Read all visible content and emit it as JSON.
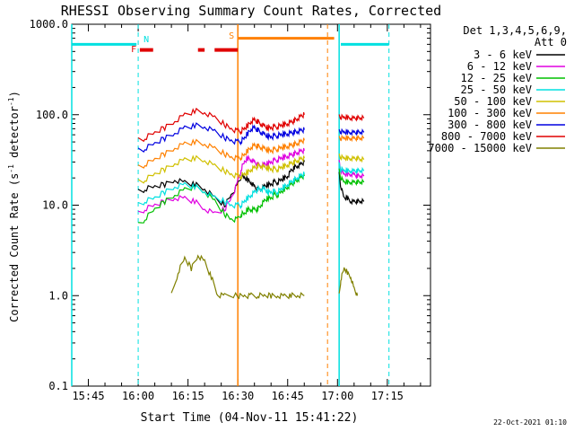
{
  "chart_data": {
    "type": "line",
    "title": "RHESSI Observing Summary Count Rates, Corrected",
    "xlabel": "Start Time (04-Nov-11 15:41:22)",
    "ylabel": "Corrected Count Rate (s⁻¹ detector⁻¹)",
    "ylabel_parts": [
      "Corrected Count Rate (s",
      "-1",
      " detector",
      "-1",
      ")"
    ],
    "y_scale": "log",
    "ylim": [
      0.1,
      1000.0
    ],
    "y_ticks": [
      "0.1",
      "1.0",
      "10.0",
      "100.0",
      "1000.0"
    ],
    "x_ticks": [
      "15:45",
      "16:00",
      "16:15",
      "16:30",
      "16:45",
      "17:00",
      "17:15"
    ],
    "x_tick_minutes": [
      -3,
      12,
      27,
      42,
      57,
      72,
      87
    ],
    "xlim_minutes_from_15_48": [
      -8,
      100
    ],
    "legend_title": [
      "Det 1,3,4,5,6,9,",
      "Att 0"
    ],
    "legend_position": "right",
    "footer": "22-Oct-2021 01:10",
    "series": [
      {
        "name": "3 - 6 keV",
        "color": "#000000",
        "x": [
          12,
          14,
          17,
          20,
          23,
          26,
          29,
          32,
          35,
          38,
          40,
          42,
          43,
          44,
          45,
          46,
          47,
          48,
          49,
          50,
          51,
          52,
          53,
          54,
          55,
          56,
          57,
          58,
          59,
          60,
          61,
          62
        ],
        "y": [
          14,
          15,
          16,
          17,
          19,
          18,
          17,
          15,
          12,
          10,
          13,
          17,
          21,
          20,
          19,
          18,
          16,
          15,
          15,
          16,
          17,
          17,
          18,
          18,
          19,
          20,
          21,
          24,
          26,
          27,
          28,
          30
        ],
        "x2": [
          72.5,
          73,
          74,
          75,
          76,
          77,
          78,
          79,
          80
        ],
        "y2": [
          22,
          16,
          12,
          12,
          11,
          11,
          11,
          11,
          11
        ]
      },
      {
        "name": "6 - 12 keV",
        "color": "#e000e0",
        "x": [
          12,
          14,
          17,
          20,
          23,
          26,
          29,
          32,
          35,
          38,
          40,
          42,
          43,
          44,
          45,
          46,
          47,
          48,
          49,
          50,
          51,
          52,
          53,
          54,
          55,
          56,
          57,
          58,
          59,
          60,
          61,
          62
        ],
        "y": [
          8,
          9,
          10,
          11,
          12,
          12,
          11,
          9,
          8,
          9,
          12,
          18,
          25,
          30,
          33,
          32,
          30,
          28,
          27,
          28,
          29,
          30,
          31,
          32,
          33,
          34,
          35,
          36,
          37,
          38,
          39,
          40
        ],
        "x2": [
          72.5,
          73,
          74,
          75,
          76,
          77,
          78,
          79,
          80
        ],
        "y2": [
          30,
          24,
          22,
          22,
          22,
          22,
          21,
          21,
          21
        ]
      },
      {
        "name": "12 - 25 keV",
        "color": "#00c000",
        "x": [
          12,
          14,
          17,
          20,
          23,
          26,
          29,
          32,
          35,
          38,
          40,
          42,
          43,
          44,
          45,
          46,
          47,
          48,
          49,
          50,
          51,
          52,
          53,
          54,
          55,
          56,
          57,
          58,
          59,
          60,
          61,
          62
        ],
        "y": [
          6,
          7,
          9,
          11,
          13,
          15,
          16,
          14,
          11,
          8,
          7,
          7,
          8,
          8,
          9,
          9,
          9,
          9,
          10,
          11,
          12,
          12,
          13,
          13,
          14,
          15,
          16,
          17,
          18,
          19,
          20,
          21
        ],
        "x2": [
          72.5,
          73,
          74,
          75,
          76,
          77,
          78,
          79,
          80
        ],
        "y2": [
          24,
          20,
          18,
          18,
          18,
          18,
          18,
          18,
          18
        ]
      },
      {
        "name": "25 - 50 keV",
        "color": "#00e0e0",
        "x": [
          12,
          14,
          17,
          20,
          23,
          26,
          29,
          32,
          35,
          38,
          40,
          42,
          43,
          44,
          45,
          46,
          47,
          48,
          49,
          50,
          51,
          52,
          53,
          54,
          55,
          56,
          57,
          58,
          59,
          60,
          61,
          62
        ],
        "y": [
          10,
          11,
          12,
          14,
          16,
          17,
          16,
          14,
          12,
          11,
          10,
          10,
          10,
          11,
          12,
          13,
          14,
          15,
          15,
          15,
          14,
          14,
          14,
          14,
          15,
          16,
          17,
          18,
          19,
          20,
          21,
          22
        ],
        "x2": [
          72.5,
          73,
          74,
          75,
          76,
          77,
          78,
          79,
          80
        ],
        "y2": [
          28,
          25,
          24,
          24,
          24,
          24,
          24,
          24,
          24
        ]
      },
      {
        "name": "50 - 100 keV",
        "color": "#d0c000",
        "x": [
          12,
          14,
          17,
          20,
          23,
          26,
          29,
          32,
          35,
          38,
          40,
          42,
          43,
          44,
          45,
          46,
          47,
          48,
          49,
          50,
          51,
          52,
          53,
          54,
          55,
          56,
          57,
          58,
          59,
          60,
          61,
          62
        ],
        "y": [
          18,
          19,
          22,
          25,
          29,
          32,
          33,
          31,
          27,
          24,
          22,
          21,
          21,
          22,
          23,
          25,
          26,
          27,
          27,
          26,
          26,
          25,
          25,
          25,
          26,
          27,
          28,
          29,
          30,
          31,
          32,
          33
        ],
        "x2": [
          72.5,
          73,
          74,
          75,
          76,
          77,
          78,
          79,
          80
        ],
        "y2": [
          35,
          34,
          33,
          33,
          33,
          33,
          33,
          32,
          32
        ]
      },
      {
        "name": "100 - 300 keV",
        "color": "#ff8000",
        "x": [
          12,
          14,
          17,
          20,
          23,
          26,
          29,
          32,
          35,
          38,
          40,
          42,
          43,
          44,
          45,
          46,
          47,
          48,
          49,
          50,
          51,
          52,
          53,
          54,
          55,
          56,
          57,
          58,
          59,
          60,
          61,
          62
        ],
        "y": [
          26,
          28,
          32,
          37,
          43,
          48,
          50,
          47,
          42,
          37,
          34,
          33,
          34,
          36,
          40,
          44,
          46,
          45,
          43,
          42,
          41,
          40,
          41,
          42,
          43,
          44,
          45,
          46,
          47,
          48,
          50,
          52
        ],
        "x2": [
          72.5,
          73,
          74,
          75,
          76,
          77,
          78,
          79,
          80
        ],
        "y2": [
          55,
          55,
          55,
          55,
          55,
          55,
          55,
          55,
          55
        ]
      },
      {
        "name": "300 - 800 keV",
        "color": "#0000e0",
        "x": [
          12,
          14,
          17,
          20,
          23,
          26,
          29,
          32,
          35,
          38,
          40,
          42,
          43,
          44,
          45,
          46,
          47,
          48,
          49,
          50,
          51,
          52,
          53,
          54,
          55,
          56,
          57,
          58,
          59,
          60,
          61,
          62
        ],
        "y": [
          40,
          42,
          48,
          55,
          63,
          72,
          76,
          73,
          65,
          56,
          52,
          50,
          51,
          55,
          62,
          70,
          72,
          68,
          63,
          60,
          58,
          57,
          58,
          59,
          60,
          61,
          62,
          63,
          64,
          65,
          66,
          68
        ],
        "x2": [
          72.5,
          73,
          74,
          75,
          76,
          77,
          78,
          79,
          80
        ],
        "y2": [
          65,
          65,
          64,
          64,
          64,
          64,
          64,
          64,
          64
        ]
      },
      {
        "name": "800 - 7000 keV",
        "color": "#e00000",
        "x": [
          12,
          14,
          17,
          20,
          23,
          26,
          29,
          32,
          35,
          38,
          40,
          42,
          43,
          44,
          45,
          46,
          47,
          48,
          49,
          50,
          51,
          52,
          53,
          54,
          55,
          56,
          57,
          58,
          59,
          60,
          61,
          62
        ],
        "y": [
          52,
          55,
          63,
          72,
          85,
          100,
          110,
          105,
          92,
          78,
          70,
          66,
          66,
          70,
          76,
          85,
          88,
          84,
          78,
          74,
          72,
          72,
          73,
          74,
          76,
          78,
          80,
          83,
          86,
          90,
          95,
          100
        ],
        "x2": [
          72.5,
          73,
          74,
          75,
          76,
          77,
          78,
          79,
          80
        ],
        "y2": [
          95,
          94,
          93,
          93,
          92,
          92,
          92,
          92,
          92
        ]
      },
      {
        "name": "7000 - 15000 keV",
        "color": "#808000",
        "x": [
          22,
          24,
          26,
          28,
          30,
          32,
          34,
          36,
          38,
          42,
          44,
          46,
          48,
          50,
          52,
          54,
          56,
          58,
          60,
          62
        ],
        "y": [
          1,
          1.8,
          2.6,
          2,
          2.8,
          2.4,
          1.6,
          1,
          1,
          1,
          1,
          1,
          1,
          1,
          1,
          1,
          1,
          1,
          1,
          1
        ],
        "x2": [
          72.5,
          73,
          74,
          75,
          76,
          77,
          78
        ],
        "y2": [
          1,
          1.5,
          2,
          1.8,
          1.6,
          1.2,
          1
        ]
      }
    ],
    "annotations": [
      {
        "label": "N",
        "color": "#00e0e0",
        "minute": 12
      },
      {
        "label": "F",
        "color": "#e00000",
        "minute": 12
      },
      {
        "label": "S",
        "color": "#ff8000",
        "minute": 42
      }
    ],
    "flag_bars": {
      "night_color": "#00e0e0",
      "night_intervals": [
        [
          -8,
          11.5
        ],
        [
          73,
          87.5
        ]
      ],
      "night_level": 600,
      "flare_color": "#e00000",
      "flare_intervals": [
        [
          12.5,
          16.5
        ],
        [
          30,
          32
        ],
        [
          35,
          42
        ]
      ],
      "flare_level": 520,
      "saa_color": "#ff8000",
      "saa_intervals": [
        [
          42,
          71
        ]
      ],
      "saa_level": 700
    },
    "vertical_lines": {
      "cyan_solid": [
        -8,
        72.5
      ],
      "cyan_dashed": [
        12,
        87.5
      ],
      "orange_solid": [
        42
      ],
      "orange_dashed": [
        69
      ]
    }
  }
}
